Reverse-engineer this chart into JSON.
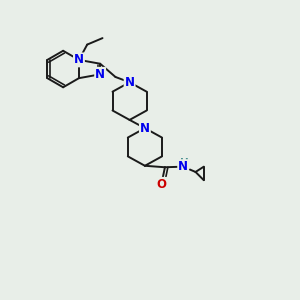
{
  "bg_color": "#e8eee8",
  "bond_color": "#1a1a1a",
  "n_color": "#0000ee",
  "o_color": "#cc0000",
  "h_color": "#4a9090",
  "line_width": 1.4,
  "font_size": 8.5,
  "xlim": [
    0,
    10
  ],
  "ylim": [
    0,
    10
  ]
}
